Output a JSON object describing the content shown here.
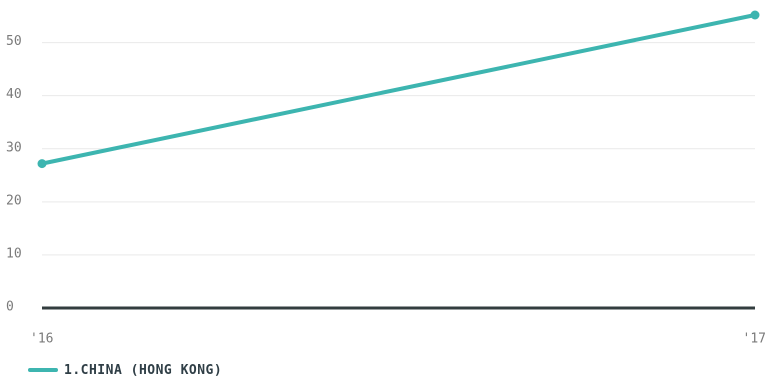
{
  "chart_data": {
    "type": "line",
    "categories": [
      "'16",
      "'17"
    ],
    "series": [
      {
        "name": "1.CHINA (HONG KONG)",
        "values": [
          27.2,
          55.2
        ],
        "color": "#3db5b0"
      }
    ],
    "y_ticks": [
      "0",
      "10",
      "20",
      "30",
      "40",
      "50"
    ],
    "ylim": [
      0,
      55.2
    ],
    "grid": true,
    "legend_position": "bottom-left"
  }
}
